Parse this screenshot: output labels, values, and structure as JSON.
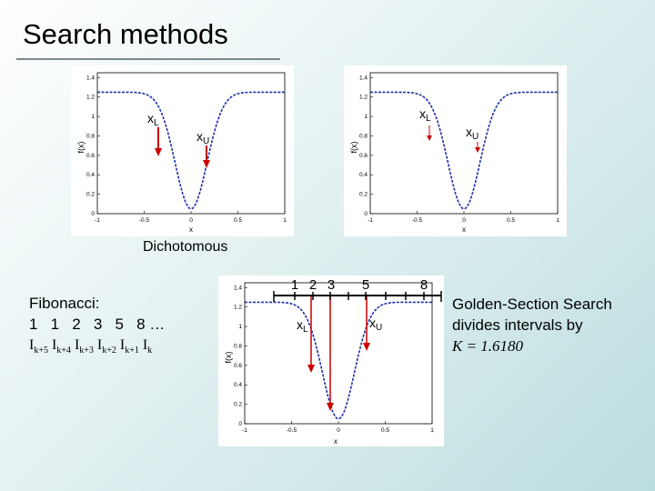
{
  "title": "Search methods",
  "plots": {
    "xlabel": "x",
    "ylabel": "f(x)",
    "yticks": [
      "1.4",
      "1.2",
      "1",
      "0.8",
      "0.6",
      "0.4",
      "0.2",
      "0"
    ],
    "xticks": [
      "-1",
      "-0.5",
      "0",
      "0.5",
      "1"
    ]
  },
  "dichotomous": {
    "caption": "Dichotomous",
    "left_marker": "x",
    "left_marker_sub": "L",
    "right_marker": "x",
    "right_marker_sub": "U"
  },
  "fibonacci_plot": {
    "scale_labels": [
      "1",
      "2",
      "3",
      "5",
      "8"
    ],
    "left_marker": "x",
    "left_marker_sub": "L",
    "right_marker": "x",
    "right_marker_sub": "U"
  },
  "fibonacci_text": {
    "heading": "Fibonacci:",
    "sequence": "1   1   2   3   5   8 …",
    "intervals": [
      {
        "base": "I",
        "sub": "k+5"
      },
      {
        "base": "I",
        "sub": "k+4"
      },
      {
        "base": "I",
        "sub": "k+3"
      },
      {
        "base": "I",
        "sub": "k+2"
      },
      {
        "base": "I",
        "sub": "k+1"
      },
      {
        "base": "I",
        "sub": "k"
      }
    ]
  },
  "golden": {
    "line1": "Golden-Section Search",
    "line2": "divides intervals by",
    "k_expr": "K = 1.6180"
  },
  "colors": {
    "curve": "#1f2ea8",
    "marker": "#cc0000"
  }
}
